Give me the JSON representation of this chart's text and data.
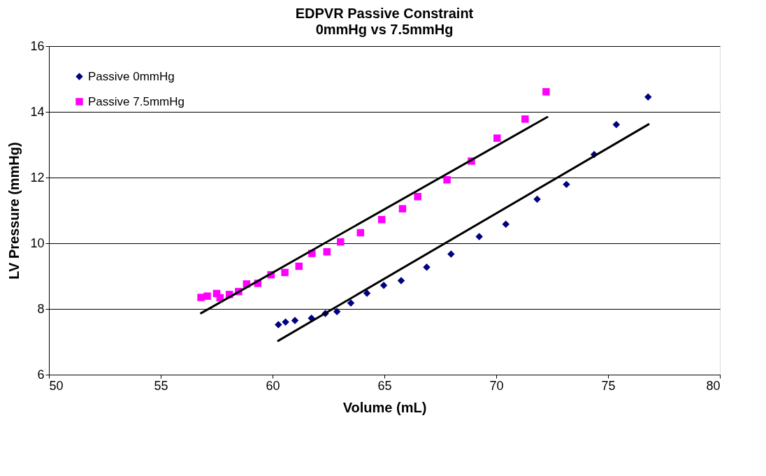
{
  "chart_data": {
    "type": "scatter",
    "title": "EDPVR Passive Constraint",
    "subtitle": "0mmHg vs 7.5mmHg",
    "xlabel": "Volume (mL)",
    "ylabel": "LV Pressure (mmHg)",
    "xlim": [
      50,
      80
    ],
    "xticks": [
      50,
      55,
      60,
      65,
      70,
      75,
      80
    ],
    "ylim": [
      6,
      16
    ],
    "yticks": [
      6,
      8,
      10,
      12,
      14,
      16
    ],
    "grid": "y",
    "legend": "top left",
    "series": [
      {
        "name": "Passive 0mmHg",
        "color": "#000080",
        "marker": "diamond",
        "x": [
          60.26,
          60.58,
          61.0,
          61.74,
          62.36,
          62.88,
          63.5,
          64.22,
          64.97,
          65.75,
          66.89,
          67.98,
          69.24,
          70.43,
          71.83,
          73.14,
          74.38,
          75.37,
          76.79
        ],
        "values": [
          7.52,
          7.6,
          7.65,
          7.72,
          7.86,
          7.92,
          8.18,
          8.48,
          8.72,
          8.86,
          9.27,
          9.67,
          10.2,
          10.58,
          11.34,
          11.79,
          12.7,
          13.61,
          14.45
        ]
      },
      {
        "name": "Passive 7.5mmHg",
        "color": "#ff00ff",
        "marker": "square",
        "x": [
          56.8,
          57.08,
          57.5,
          57.65,
          58.07,
          58.48,
          58.84,
          59.34,
          59.93,
          60.55,
          61.18,
          61.76,
          62.43,
          63.04,
          63.93,
          64.88,
          65.81,
          66.49,
          67.8,
          68.89,
          70.04,
          71.29,
          72.23
        ],
        "values": [
          8.35,
          8.39,
          8.47,
          8.34,
          8.44,
          8.53,
          8.76,
          8.78,
          9.04,
          9.11,
          9.3,
          9.69,
          9.74,
          10.04,
          10.32,
          10.72,
          11.05,
          11.42,
          11.93,
          12.5,
          13.2,
          13.78,
          14.61
        ]
      },
      {
        "type": "line",
        "color": "#000000",
        "line_style": "solid",
        "x": [
          60.25,
          76.81
        ],
        "values": [
          7.03,
          13.62
        ]
      },
      {
        "type": "line",
        "color": "#000000",
        "line_style": "solid",
        "x": [
          56.8,
          72.28
        ],
        "values": [
          7.87,
          13.84
        ]
      }
    ]
  }
}
